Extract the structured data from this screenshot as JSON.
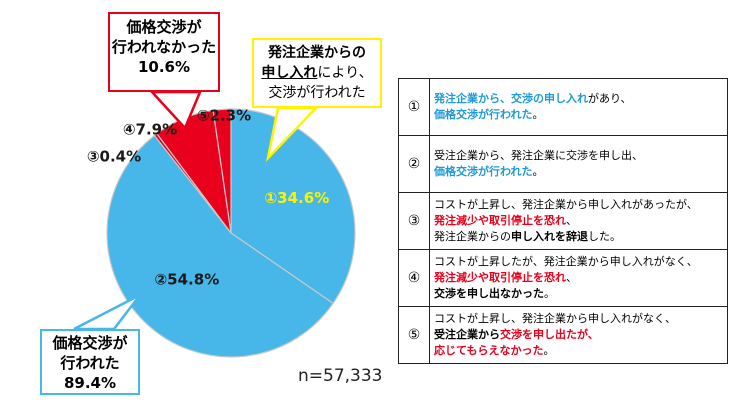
{
  "chart_data": {
    "type": "pie",
    "total_label": "n=57,333",
    "slices": [
      {
        "id": "①",
        "value": 34.6,
        "label": "①34.6%",
        "color": "#47b6e8"
      },
      {
        "id": "②",
        "value": 54.8,
        "label": "②54.8%",
        "color": "#47b6e8"
      },
      {
        "id": "③",
        "value": 0.4,
        "label": "③0.4%",
        "color": "#e8001c"
      },
      {
        "id": "④",
        "value": 7.9,
        "label": "④7.9%",
        "color": "#e8001c"
      },
      {
        "id": "⑤",
        "value": 2.3,
        "label": "⑤2.3%",
        "color": "#e8001c"
      }
    ],
    "slice_border_color": "#c8c8c8",
    "label_highlight_color": "#fff200"
  },
  "callouts": {
    "not_negotiated": {
      "line1": "価格交渉が",
      "line2": "行われなかった",
      "line3": "10.6%",
      "color": "#e8001c"
    },
    "negotiated": {
      "line1": "価格交渉が",
      "line2": "行われた",
      "line3": "89.4%",
      "color": "#47b6e8"
    },
    "buyer_request": {
      "line1": "発注企業からの",
      "line2_underlined": "申し入れ",
      "line2_rest": "により、",
      "line3": "交渉が行われた",
      "color": "#fff200"
    }
  },
  "legend": [
    {
      "num": "①",
      "lines": [
        [
          {
            "t": "発注企業から、交渉の申し入れ",
            "s": "blue"
          },
          {
            "t": "があり、",
            "s": ""
          }
        ],
        [
          {
            "t": "価格交渉が行われた",
            "s": "blue"
          },
          {
            "t": "。",
            "s": ""
          }
        ]
      ]
    },
    {
      "num": "②",
      "lines": [
        [
          {
            "t": "受注企業から、発注企業に交渉を申し出、",
            "s": ""
          }
        ],
        [
          {
            "t": "価格交渉が行われた",
            "s": "blue"
          },
          {
            "t": "。",
            "s": ""
          }
        ]
      ]
    },
    {
      "num": "③",
      "lines": [
        [
          {
            "t": "コストが上昇し、発注企業から申し入れがあったが、",
            "s": ""
          }
        ],
        [
          {
            "t": "発注減少や取引停止を恐れ",
            "s": "red"
          },
          {
            "t": "、",
            "s": ""
          }
        ],
        [
          {
            "t": "発注企業からの",
            "s": ""
          },
          {
            "t": "申し入れを辞退",
            "s": "bold"
          },
          {
            "t": "した。",
            "s": ""
          }
        ]
      ]
    },
    {
      "num": "④",
      "lines": [
        [
          {
            "t": "コストが上昇したが、発注企業から申し入れがなく、",
            "s": ""
          }
        ],
        [
          {
            "t": "発注減少や取引停止を恐れ",
            "s": "red"
          },
          {
            "t": "、",
            "s": ""
          }
        ],
        [
          {
            "t": "交渉を申し出なかった",
            "s": "bold"
          },
          {
            "t": "。",
            "s": ""
          }
        ]
      ]
    },
    {
      "num": "⑤",
      "lines": [
        [
          {
            "t": "コストが上昇し、発注企業から申し入れがなく、",
            "s": ""
          }
        ],
        [
          {
            "t": "受注企業から",
            "s": "bold"
          },
          {
            "t": "交渉を申し出たが、",
            "s": "red"
          }
        ],
        [
          {
            "t": "応じてもらえなかった",
            "s": "red"
          },
          {
            "t": "。",
            "s": ""
          }
        ]
      ]
    }
  ]
}
